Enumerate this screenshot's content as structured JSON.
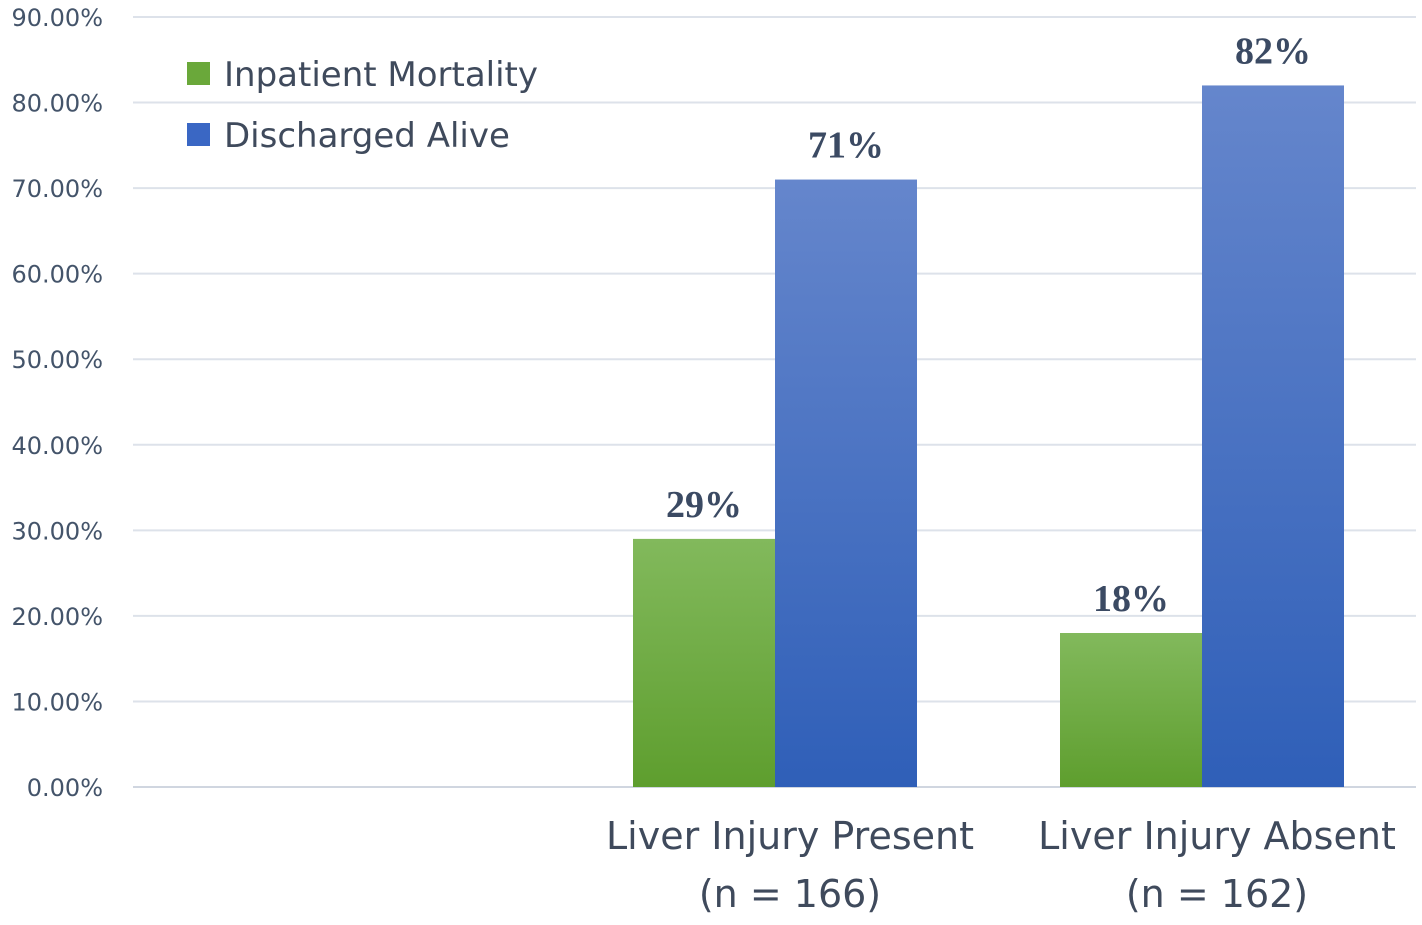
{
  "chart_data": {
    "type": "bar",
    "categories": [
      [
        "Liver Injury Present",
        "(n = 166)"
      ],
      [
        "Liver Injury Absent",
        "(n = 162)"
      ]
    ],
    "series": [
      {
        "name": "Inpatient Mortality",
        "values": [
          29,
          18
        ],
        "labels": [
          "29%",
          "18%"
        ],
        "color": "#6aa83a"
      },
      {
        "name": "Discharged Alive",
        "values": [
          71,
          82
        ],
        "labels": [
          "71%",
          "82%"
        ],
        "color": "#3a67c4"
      }
    ],
    "yticks": [
      "0.00%",
      "10.00%",
      "20.00%",
      "30.00%",
      "40.00%",
      "50.00%",
      "60.00%",
      "70.00%",
      "80.00%",
      "90.00%"
    ],
    "ylim": [
      0,
      90
    ],
    "grid": true,
    "legend_position": "top-left",
    "title": "",
    "xlabel": "",
    "ylabel": ""
  }
}
